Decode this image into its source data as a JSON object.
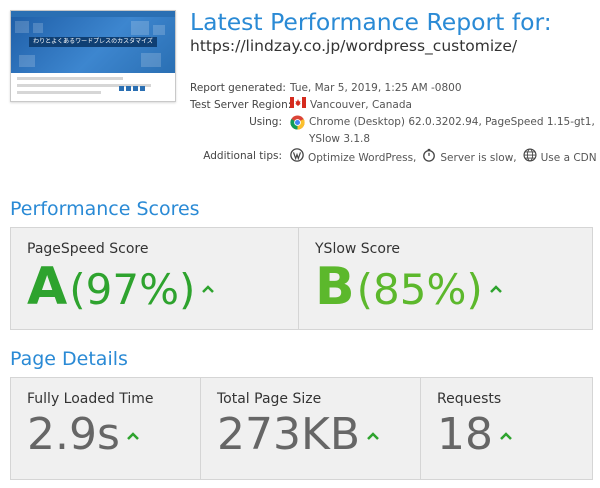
{
  "header": {
    "title": "Latest Performance Report for:",
    "url": "https://lindzay.co.jp/wordpress_customize/"
  },
  "thumbnail": {
    "hero_text": "わりとよくあるワードプレスのカスタマイズ"
  },
  "report": {
    "generated_label": "Report generated:",
    "generated_value": "Tue, Mar 5, 2019, 1:25 AM -0800",
    "region_label": "Test Server Region:",
    "region_value": "Vancouver, Canada",
    "using_label": "Using:",
    "using_line1": "Chrome (Desktop) 62.0.3202.94, PageSpeed 1.15-gt1,",
    "using_line2": "YSlow 3.1.8",
    "tips_label": "Additional tips:",
    "tips": [
      "Optimize WordPress,",
      "Server is slow,",
      "Use a CDN"
    ]
  },
  "scores": {
    "section_title": "Performance Scores",
    "pagespeed": {
      "label": "PageSpeed Score",
      "grade": "A",
      "percent": "(97%)",
      "color": "#2ea32e"
    },
    "yslow": {
      "label": "YSlow Score",
      "grade": "B",
      "percent": "(85%)",
      "color": "#5cb82c"
    }
  },
  "details": {
    "section_title": "Page Details",
    "loaded": {
      "label": "Fully Loaded Time",
      "value": "2.9s"
    },
    "size": {
      "label": "Total Page Size",
      "value": "273KB"
    },
    "requests": {
      "label": "Requests",
      "value": "18"
    }
  },
  "colors": {
    "accent_blue": "#2a8ad5",
    "arrow_green": "#2ea32e",
    "panel_bg": "#f0f0f0"
  }
}
